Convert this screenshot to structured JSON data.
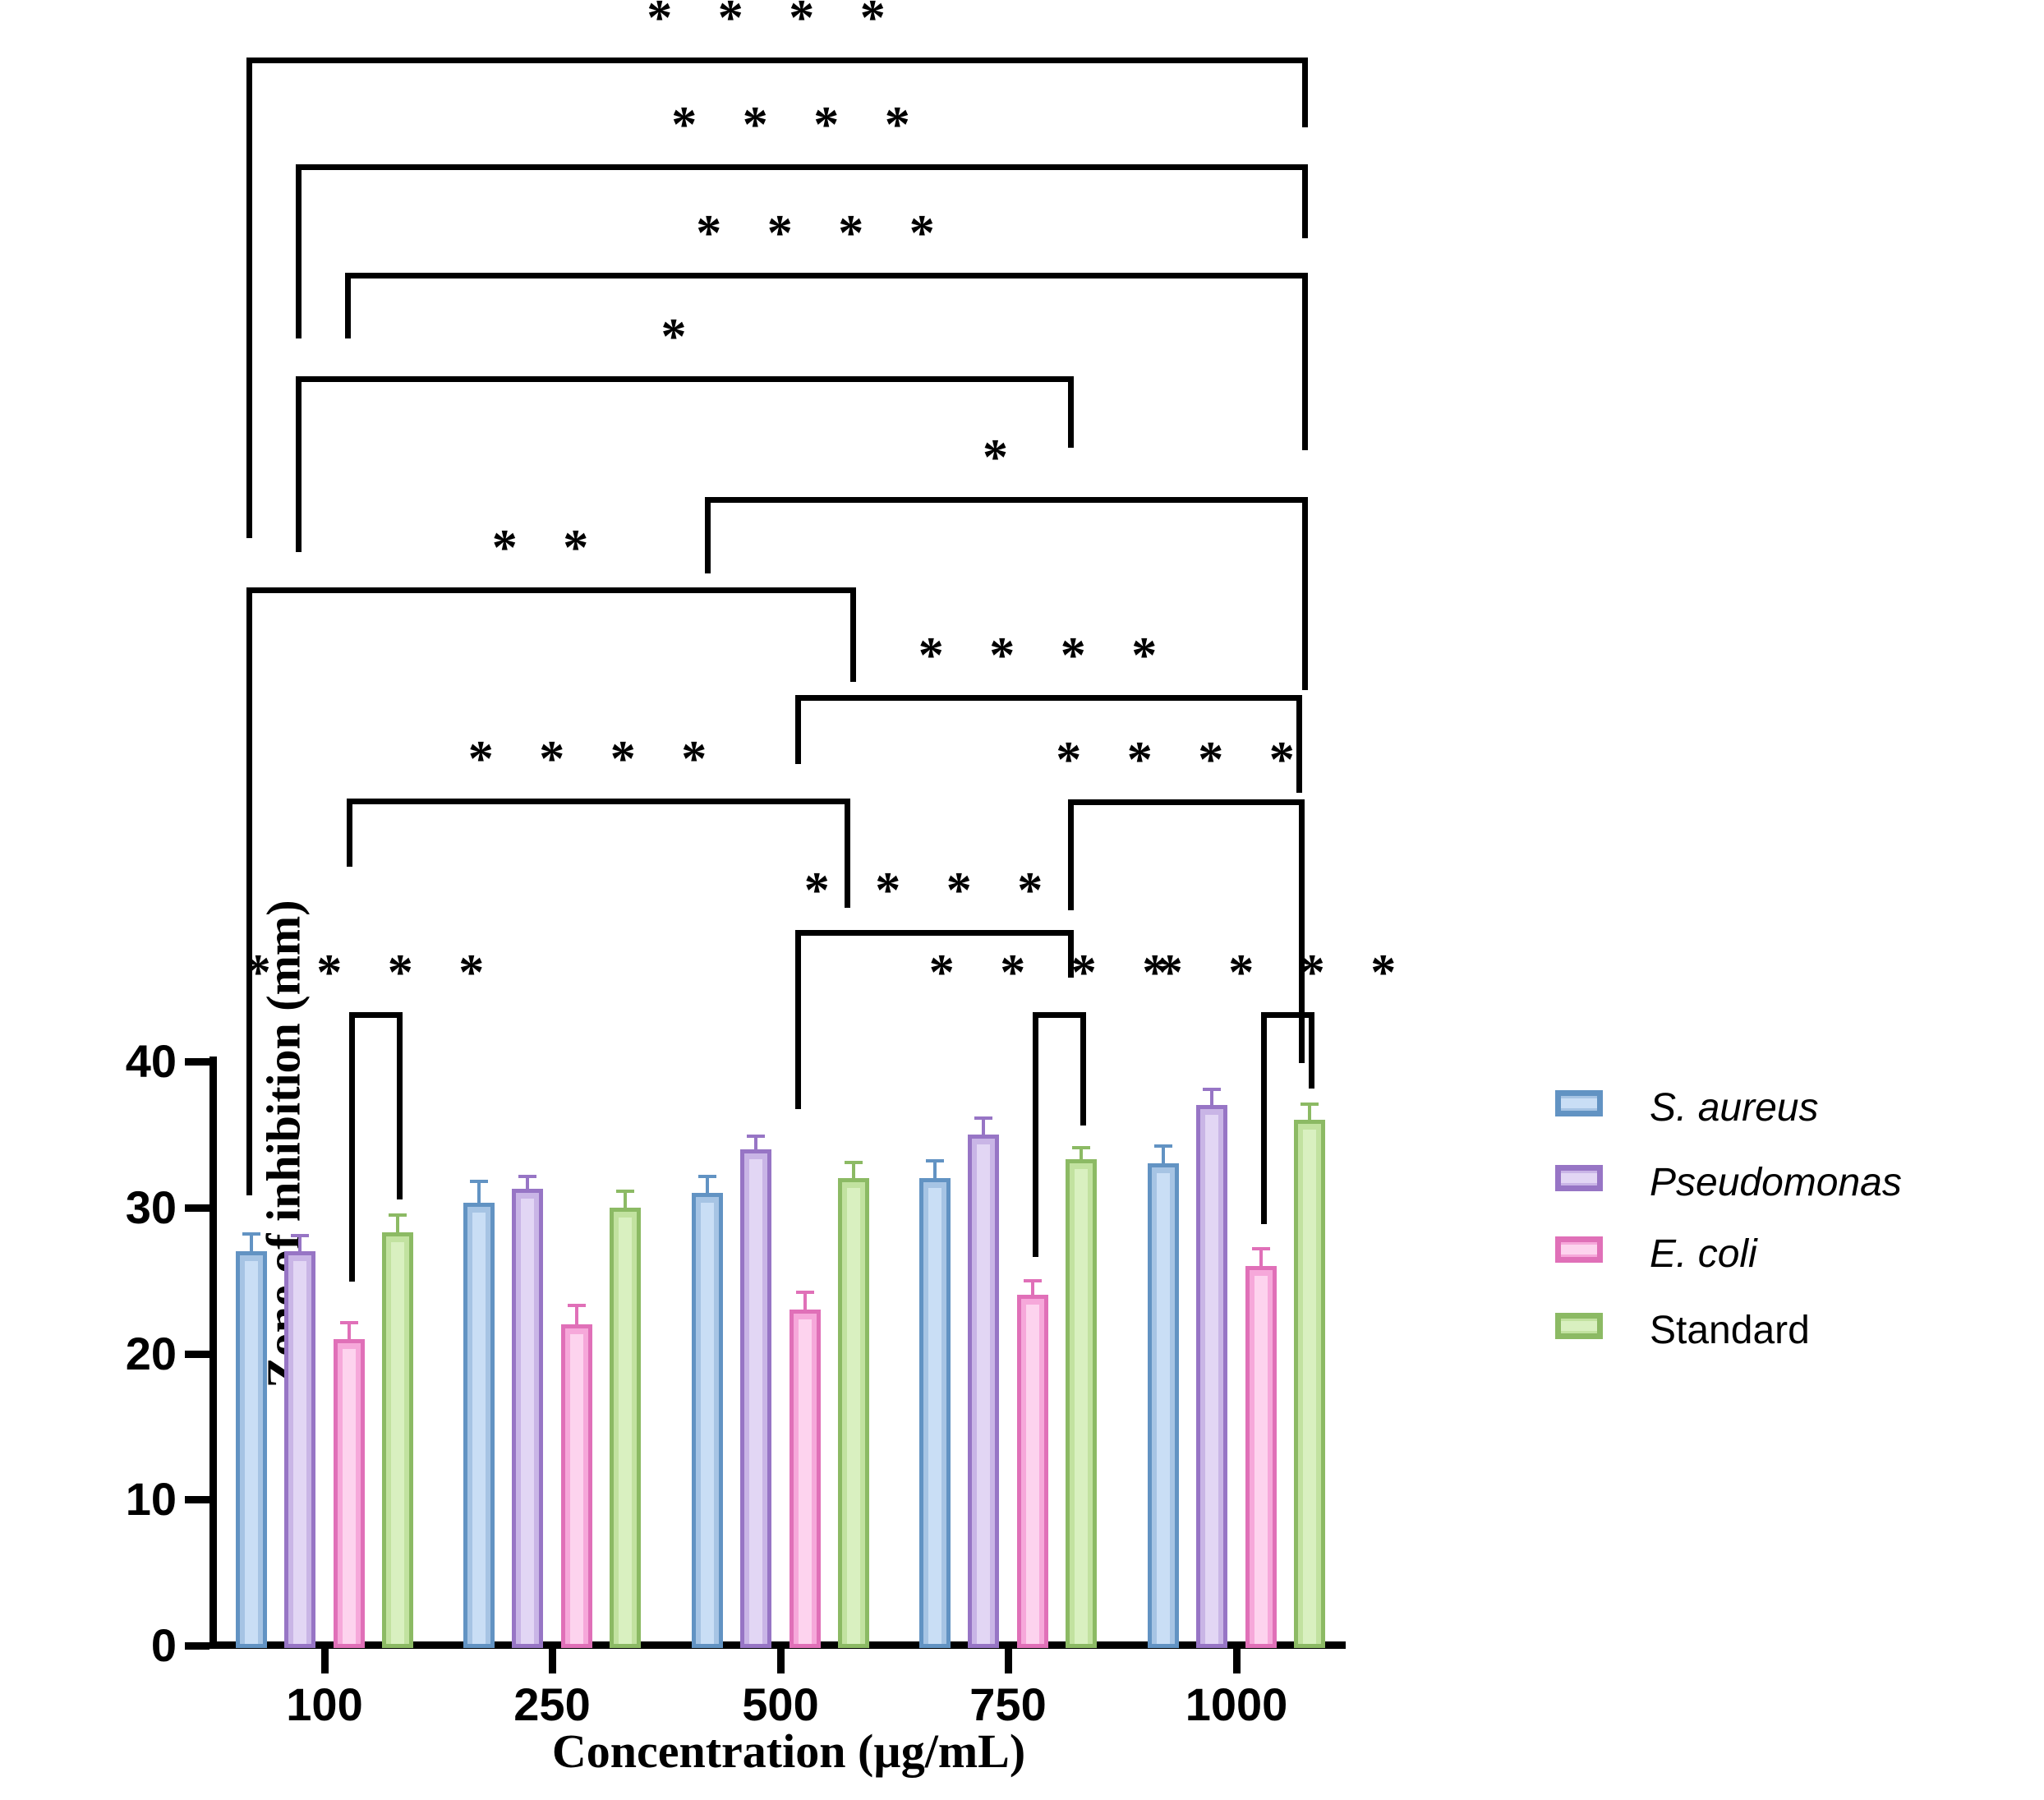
{
  "chart_data": {
    "type": "bar",
    "title": "",
    "xlabel": "Concentration (µg/mL)",
    "ylabel": "Zone of inhibition (mm)",
    "ylim": [
      0,
      40
    ],
    "yticks": [
      0,
      10,
      20,
      30,
      40
    ],
    "grid": false,
    "legend_position": "right",
    "categories": [
      "100",
      "250",
      "500",
      "750",
      "1000"
    ],
    "series": [
      {
        "name": "S. aureus",
        "italic": true,
        "color": {
          "border": "#6293c3",
          "mid": "#a6c4e4",
          "light": "#c9def5"
        },
        "values": [
          27,
          30.3,
          31,
          32,
          33
        ],
        "errors": [
          1.2,
          1.5,
          1.1,
          1.2,
          1.2
        ]
      },
      {
        "name": "Pseudomonas",
        "italic": true,
        "color": {
          "border": "#9775c5",
          "mid": "#c9b5e6",
          "light": "#e2d6f4"
        },
        "values": [
          27,
          31.3,
          34,
          35,
          37
        ],
        "errors": [
          1.1,
          0.8,
          0.9,
          1.1,
          1.1
        ]
      },
      {
        "name": "E. coli",
        "italic": true,
        "color": {
          "border": "#e070b8",
          "mid": "#f6a8da",
          "light": "#fdd3ee"
        },
        "values": [
          21,
          22,
          23,
          24,
          26
        ],
        "errors": [
          1.1,
          1.3,
          1.2,
          1.0,
          1.2
        ]
      },
      {
        "name": "Standard",
        "italic": false,
        "color": {
          "border": "#8cba64",
          "mid": "#c2e2a0",
          "light": "#d9f0c0"
        },
        "values": [
          28.3,
          30,
          32,
          33.3,
          36
        ],
        "errors": [
          1.2,
          1.1,
          1.1,
          0.8,
          1.1
        ]
      }
    ],
    "significance": [
      {
        "stars": "****",
        "comparison": "S. aureus 100 vs Standard 1000",
        "x1": 300,
        "x2": 1585,
        "y": 70,
        "lEnd": 655,
        "rEnd": 155
      },
      {
        "stars": "****",
        "comparison": "Pseudomonas 100 vs Standard 1000",
        "x1": 360,
        "x2": 1585,
        "y": 200,
        "lEnd": 412,
        "rEnd": 290
      },
      {
        "stars": "****",
        "comparison": "E. coli 100 vs Standard 1000",
        "x1": 420,
        "x2": 1585,
        "y": 332,
        "lEnd": 412,
        "rEnd": 548
      },
      {
        "stars": "*",
        "comparison": "Pseudomonas 100 vs 750",
        "x1": 360,
        "x2": 1300,
        "y": 458,
        "lEnd": 672,
        "rEnd": 545
      },
      {
        "stars": "*",
        "comparison": "S. aureus 500 vs Standard 1000",
        "x1": 858,
        "x2": 1585,
        "y": 605,
        "lEnd": 698,
        "rEnd": 840
      },
      {
        "stars": "**",
        "comparison": "S. aureus 100 vs Standard 500",
        "x1": 300,
        "x2": 1035,
        "y": 715,
        "lEnd": 1455,
        "rEnd": 830
      },
      {
        "stars": "****",
        "comparison": "E. coli 500 vs Standard 1000",
        "x1": 968,
        "x2": 1578,
        "y": 846,
        "lEnd": 930,
        "rEnd": 965
      },
      {
        "stars": "****",
        "comparison": "E. coli 100 vs Standard 500",
        "x1": 422,
        "x2": 1028,
        "y": 972,
        "lEnd": 1055,
        "rEnd": 1105
      },
      {
        "stars": "****",
        "comparison": "750 vs Standard 1000",
        "x1": 1300,
        "x2": 1581,
        "y": 973,
        "lEnd": 1108,
        "rEnd": 1294
      },
      {
        "stars": "****",
        "comparison": "E. coli 500 vs Standard 750",
        "x1": 968,
        "x2": 1300,
        "y": 1132,
        "lEnd": 1350,
        "rEnd": 1190
      },
      {
        "stars": "****",
        "comparison": "E. coli 100 vs Standard 100",
        "x1": 425,
        "x2": 483,
        "y": 1232,
        "lEnd": 1560,
        "rEnd": 1460
      },
      {
        "stars": "****",
        "comparison": "E. coli 750 vs Standard 750",
        "x1": 1257,
        "x2": 1315,
        "y": 1232,
        "lEnd": 1530,
        "rEnd": 1370
      },
      {
        "stars": "****",
        "comparison": "E. coli 1000 vs Standard 1000",
        "x1": 1535,
        "x2": 1593,
        "y": 1232,
        "lEnd": 1490,
        "rEnd": 1325
      }
    ]
  },
  "legend": {
    "items": [
      {
        "label": "S. aureus",
        "italic": true
      },
      {
        "label": "Pseudomonas",
        "italic": true
      },
      {
        "label": "E. coli",
        "italic": true
      },
      {
        "label": "Standard",
        "italic": false
      }
    ]
  }
}
